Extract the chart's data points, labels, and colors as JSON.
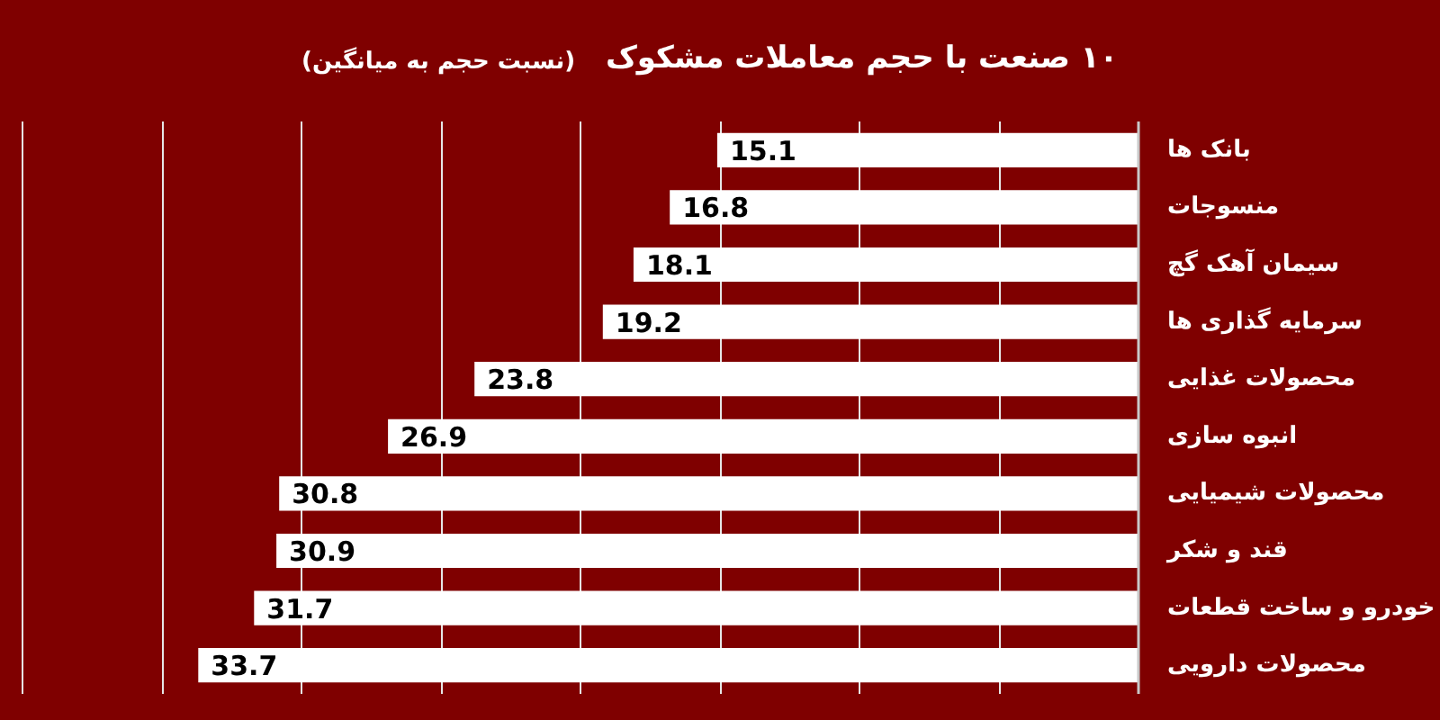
{
  "chart_data": {
    "type": "bar",
    "orientation": "horizontal",
    "title": "۱۰ صنعت با حجم معاملات مشکوک",
    "subtitle": "(نسبت حجم به میانگین)",
    "categories": [
      "بانک ها",
      "منسوجات",
      "سیمان آهک گچ",
      "سرمایه گذاری ها",
      "محصولات غذایی",
      "انبوه سازی",
      "محصولات شیمیایی",
      "قند و شکر",
      "خودرو و ساخت قطعات",
      "محصولات دارویی"
    ],
    "values": [
      15.1,
      16.8,
      18.1,
      19.2,
      23.8,
      26.9,
      30.8,
      30.9,
      31.7,
      33.7
    ],
    "color": "#ffffff",
    "data_labels": true,
    "xlim": [
      40,
      0
    ],
    "xticks": [
      {
        "value": 0,
        "label": null
      },
      {
        "value": 5,
        "label": null
      },
      {
        "value": 10,
        "label": null
      },
      {
        "value": 15,
        "label": null
      },
      {
        "value": 20,
        "label": null
      },
      {
        "value": 25,
        "label": null
      },
      {
        "value": 30,
        "label": null
      },
      {
        "value": 35,
        "label": null
      },
      {
        "value": 40,
        "label": null
      }
    ],
    "grid": "x",
    "tick_labels": "y"
  }
}
